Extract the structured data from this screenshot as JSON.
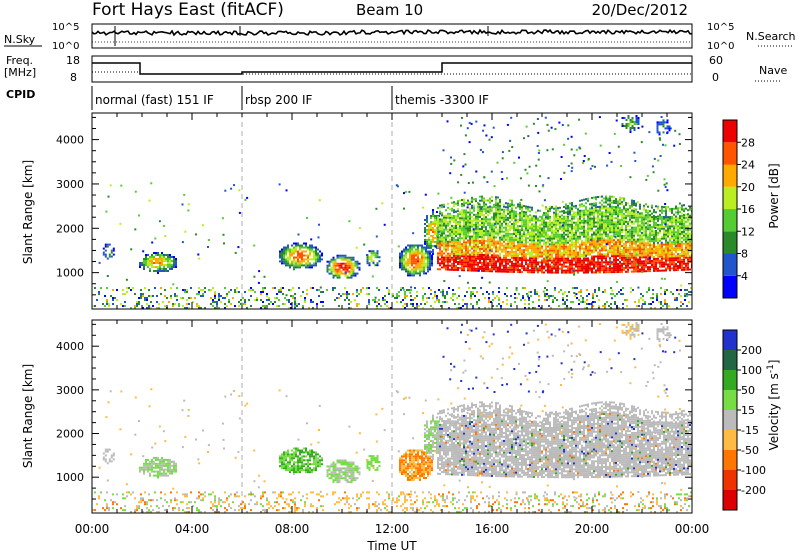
{
  "header": {
    "station": "Fort Hays East (fitACF)",
    "beam": "Beam 10",
    "date": "20/Dec/2012"
  },
  "panels": {
    "nsky_label": "N.Sky",
    "nsearch_label": "N.Search",
    "freq_label_1": "Freq.",
    "freq_label_2": "[MHz]",
    "nave_label": "Nave",
    "cpid_label": "CPID",
    "nsky_ticks": [
      "10^5",
      "10^0"
    ],
    "nsearch_ticks": [
      "10^5",
      "10^0"
    ],
    "freq_ticks": [
      "18",
      "8"
    ],
    "nave_ticks": [
      "60",
      "0"
    ]
  },
  "cpid": [
    {
      "label": "normal (fast) 151 IF",
      "start": 0
    },
    {
      "label": "rbsp 200 IF",
      "start": 6
    },
    {
      "label": "themis -3300 IF",
      "start": 12
    }
  ],
  "chart_data": [
    {
      "type": "heatmap",
      "quantity": "Power",
      "ylabel": "Slant Range [km]",
      "yticks": [
        "1000",
        "2000",
        "3000",
        "4000"
      ],
      "ylim": [
        180,
        4600
      ],
      "xlim": [
        0,
        24
      ],
      "colorbar_label": "Power [dB]",
      "colorbar_ticks": [
        "4",
        "8",
        "12",
        "16",
        "20",
        "24",
        "28"
      ],
      "colorbar_range": [
        0,
        32
      ],
      "colors": [
        "#0000ff",
        "#2255cc",
        "#2a8a2a",
        "#55cc33",
        "#bbee22",
        "#ffaa00",
        "#ff5500",
        "#ee0000"
      ]
    },
    {
      "type": "heatmap",
      "quantity": "Velocity",
      "ylabel": "Slant Range [km]",
      "yticks": [
        "1000",
        "2000",
        "3000",
        "4000"
      ],
      "ylim": [
        180,
        4600
      ],
      "xlim": [
        0,
        24
      ],
      "colorbar_label": "Velocity [m s",
      "colorbar_label_sup": "-1",
      "colorbar_label_end": "]",
      "colorbar_ticks": [
        "200",
        "100",
        "50",
        "15",
        "-15",
        "-50",
        "-100",
        "-200"
      ],
      "colors": [
        "#2233cc",
        "#226644",
        "#33aa22",
        "#77dd44",
        "#bbbbbb",
        "#ffbb44",
        "#ff7700",
        "#ee3300",
        "#dd0000"
      ]
    }
  ],
  "xaxis": {
    "ticks": [
      "00:00",
      "04:00",
      "08:00",
      "12:00",
      "16:00",
      "20:00",
      "00:00"
    ],
    "label": "Time UT"
  }
}
